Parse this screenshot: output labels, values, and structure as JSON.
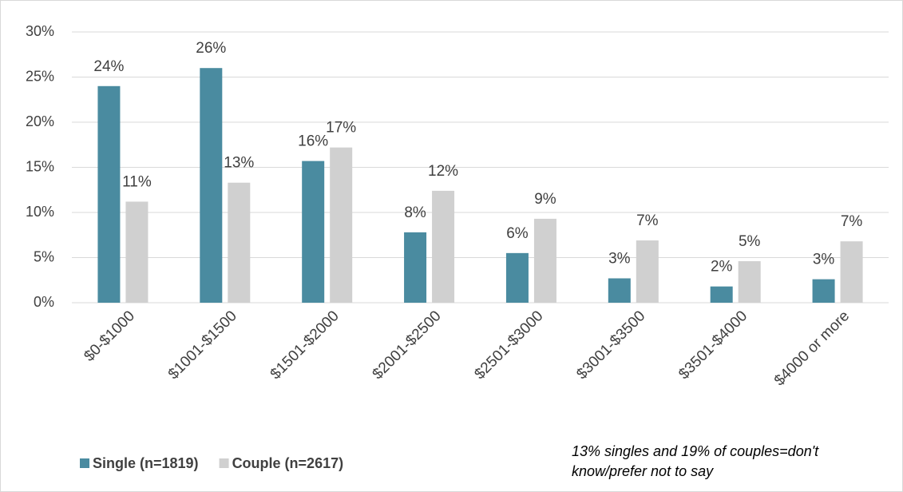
{
  "chart_data": {
    "type": "bar",
    "categories": [
      "$0-$1000",
      "$1001-$1500",
      "$1501-$2000",
      "$2001-$2500",
      "$2501-$3000",
      "$3001-$3500",
      "$3501-$4000",
      "$4000 or more"
    ],
    "series": [
      {
        "name": "Single (n=1819)",
        "color": "#4a8ba0",
        "values": [
          24.0,
          26.0,
          15.7,
          7.8,
          5.5,
          2.7,
          1.8,
          2.6
        ],
        "value_labels": [
          "24%",
          "26%",
          "16%",
          "8%",
          "6%",
          "3%",
          "2%",
          "3%"
        ]
      },
      {
        "name": "Couple (n=2617)",
        "color": "#d0d0d0",
        "values": [
          11.2,
          13.3,
          17.2,
          12.4,
          9.3,
          6.9,
          4.6,
          6.8
        ],
        "value_labels": [
          "11%",
          "13%",
          "17%",
          "12%",
          "9%",
          "7%",
          "5%",
          "7%"
        ]
      }
    ],
    "ylim": [
      0,
      30
    ],
    "yticks": [
      {
        "value": 0,
        "label": "0%"
      },
      {
        "value": 5,
        "label": "5%"
      },
      {
        "value": 10,
        "label": "10%"
      },
      {
        "value": 15,
        "label": "15%"
      },
      {
        "value": 20,
        "label": "20%"
      },
      {
        "value": 25,
        "label": "25%"
      },
      {
        "value": 30,
        "label": "30%"
      }
    ],
    "grid": true,
    "legend": "bottom-left",
    "annotation": [
      "13% singles and 19% of couples=don't",
      "know/prefer not to say"
    ]
  }
}
